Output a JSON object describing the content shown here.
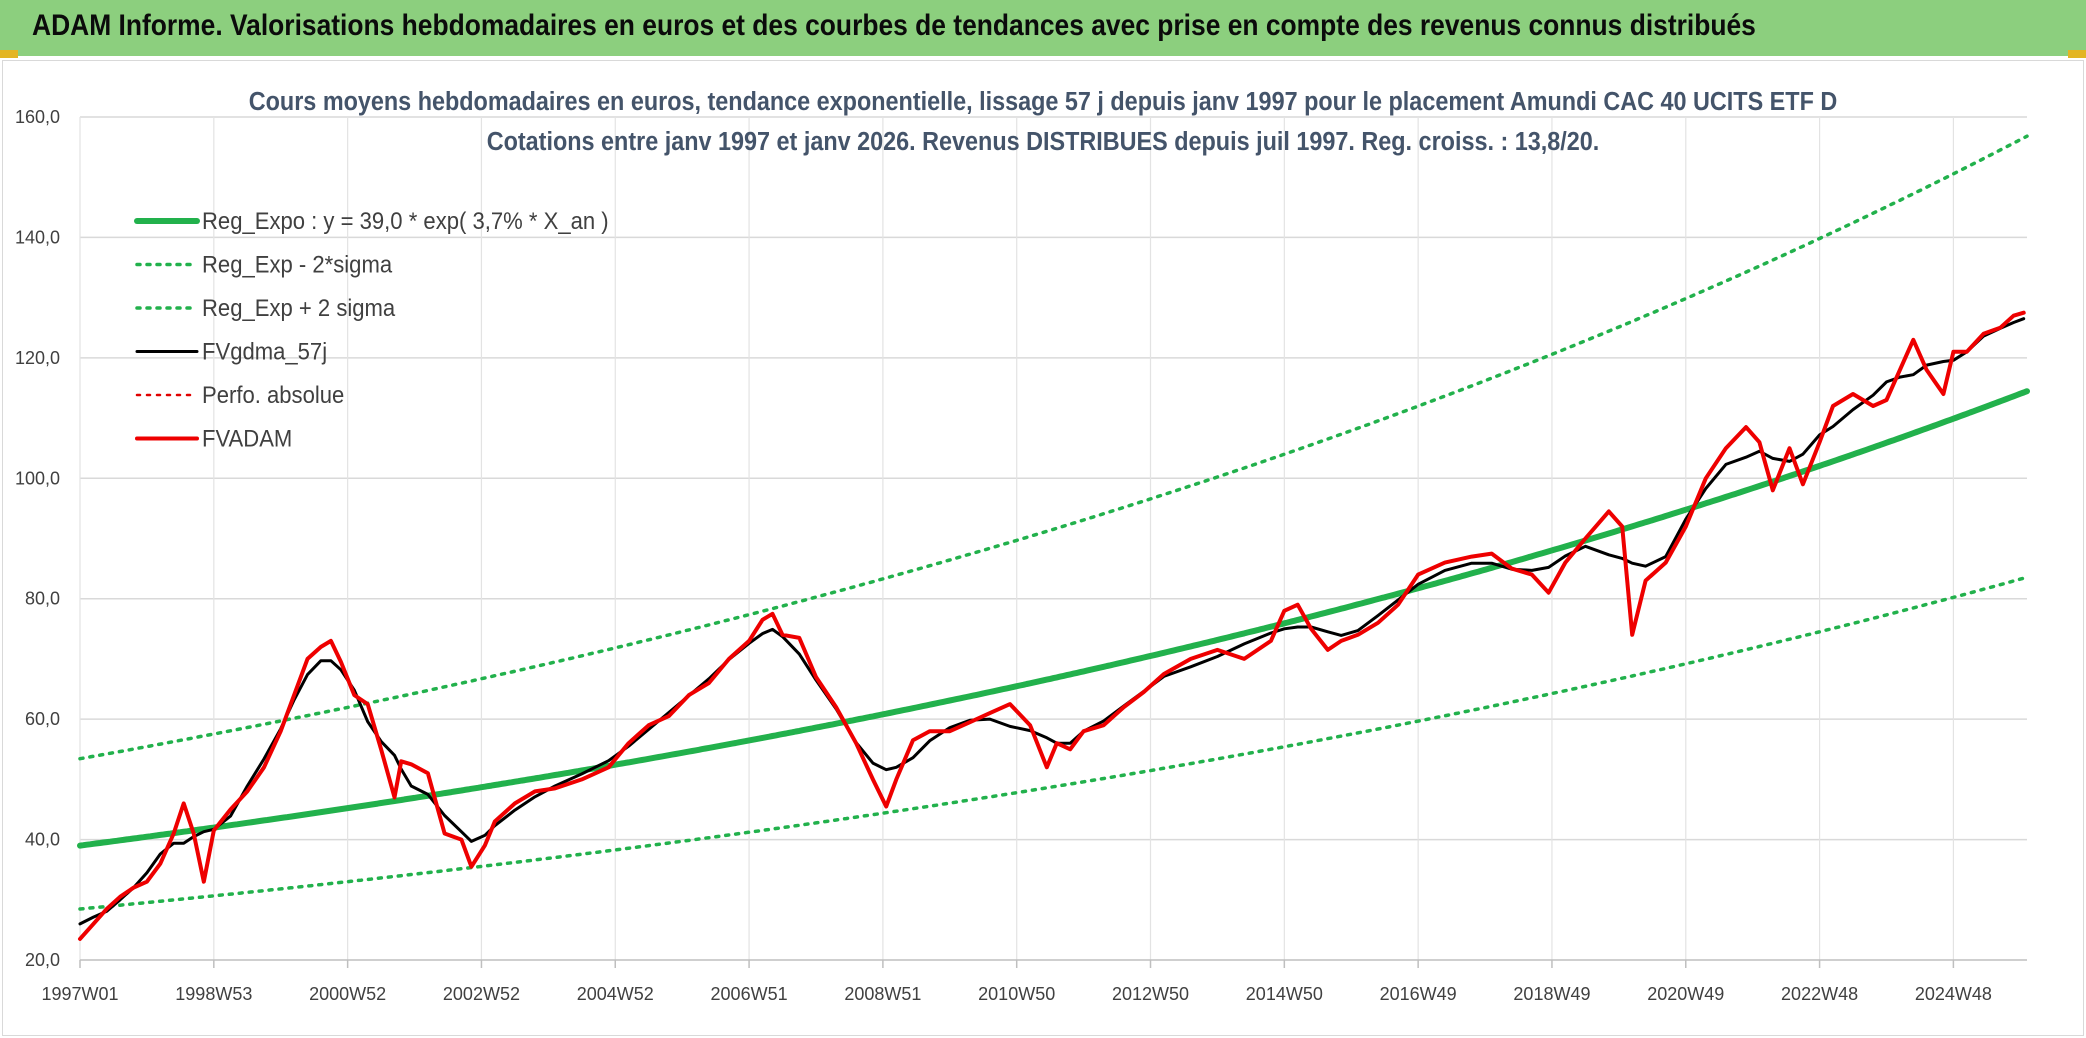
{
  "banner": {
    "title": "ADAM Informe. Valorisations hebdomadaires en euros et des courbes de tendances avec prise en compte des revenus connus distribués"
  },
  "chart_data": {
    "type": "line",
    "title_lines": [
      "Cours moyens hebdomadaires en euros, tendance exponentielle, lissage 57 j depuis janv 1997 pour le placement Amundi CAC 40 UCITS ETF D",
      "Cotations entre janv 1997 et janv 2026. Revenus DISTRIBUES depuis juil 1997. Reg. croiss. : 13,8/20."
    ],
    "xlabel": "",
    "ylabel": "",
    "ylim": [
      20,
      160
    ],
    "y_ticks": [
      "20,0",
      "40,0",
      "60,0",
      "80,0",
      "100,0",
      "120,0",
      "140,0",
      "160,0"
    ],
    "xlim": [
      1997.0,
      2026.1
    ],
    "x_ticks": [
      {
        "x": 1997.0,
        "label": "1997W01"
      },
      {
        "x": 1999.0,
        "label": "1998W53"
      },
      {
        "x": 2001.0,
        "label": "2000W52"
      },
      {
        "x": 2003.0,
        "label": "2002W52"
      },
      {
        "x": 2005.0,
        "label": "2004W52"
      },
      {
        "x": 2007.0,
        "label": "2006W51"
      },
      {
        "x": 2009.0,
        "label": "2008W51"
      },
      {
        "x": 2011.0,
        "label": "2010W50"
      },
      {
        "x": 2013.0,
        "label": "2012W50"
      },
      {
        "x": 2015.0,
        "label": "2014W50"
      },
      {
        "x": 2017.0,
        "label": "2016W49"
      },
      {
        "x": 2019.0,
        "label": "2018W49"
      },
      {
        "x": 2021.0,
        "label": "2020W49"
      },
      {
        "x": 2023.0,
        "label": "2022W48"
      },
      {
        "x": 2025.0,
        "label": "2024W48"
      }
    ],
    "grid": true,
    "legend_position": "top-left",
    "regression": {
      "a": 39.0,
      "rate_pct": 3.7,
      "sigma_factor_low": 0.73,
      "sigma_factor_high": 1.37
    },
    "series": [
      {
        "name": "Reg_Expo : y = 39,0 * exp( 3,7% *  X_an )",
        "kind": "trend",
        "color": "#22b14c",
        "style": "solid",
        "width": 6
      },
      {
        "name": "Reg_Exp - 2*sigma",
        "kind": "trend_low",
        "color": "#22b14c",
        "style": "dotted",
        "width": 3.5
      },
      {
        "name": "Reg_Exp + 2 sigma",
        "kind": "trend_high",
        "color": "#22b14c",
        "style": "dotted",
        "width": 3.5
      },
      {
        "name": "FVgdma_57j",
        "kind": "smoothed",
        "color": "#000000",
        "style": "solid",
        "width": 3
      },
      {
        "name": "Perfo. absolue",
        "kind": "perf",
        "color": "#e00000",
        "style": "dotted",
        "width": 2.5
      },
      {
        "name": "FVADAM",
        "kind": "price",
        "color": "#ee0000",
        "style": "solid",
        "width": 4,
        "x": [
          1997.0,
          1997.2,
          1997.4,
          1997.6,
          1997.8,
          1998.0,
          1998.2,
          1998.4,
          1998.55,
          1998.7,
          1998.85,
          1999.0,
          1999.25,
          1999.5,
          1999.75,
          2000.0,
          2000.2,
          2000.4,
          2000.6,
          2000.75,
          2000.9,
          2001.1,
          2001.3,
          2001.5,
          2001.7,
          2001.8,
          2001.95,
          2002.2,
          2002.45,
          2002.7,
          2002.85,
          2003.05,
          2003.2,
          2003.5,
          2003.8,
          2004.1,
          2004.5,
          2004.9,
          2005.2,
          2005.5,
          2005.8,
          2006.1,
          2006.4,
          2006.7,
          2007.0,
          2007.2,
          2007.35,
          2007.5,
          2007.75,
          2008.0,
          2008.3,
          2008.6,
          2008.85,
          2009.05,
          2009.2,
          2009.45,
          2009.7,
          2010.0,
          2010.3,
          2010.6,
          2010.9,
          2011.2,
          2011.45,
          2011.6,
          2011.8,
          2012.0,
          2012.3,
          2012.6,
          2012.9,
          2013.2,
          2013.6,
          2014.0,
          2014.4,
          2014.8,
          2015.0,
          2015.2,
          2015.4,
          2015.65,
          2015.85,
          2016.1,
          2016.4,
          2016.7,
          2017.0,
          2017.4,
          2017.8,
          2018.1,
          2018.4,
          2018.7,
          2018.95,
          2019.2,
          2019.5,
          2019.85,
          2020.05,
          2020.2,
          2020.4,
          2020.7,
          2021.0,
          2021.3,
          2021.6,
          2021.9,
          2022.1,
          2022.3,
          2022.55,
          2022.75,
          2023.0,
          2023.2,
          2023.5,
          2023.8,
          2024.0,
          2024.2,
          2024.4,
          2024.6,
          2024.85,
          2025.0,
          2025.2,
          2025.45,
          2025.7,
          2025.9,
          2026.05
        ],
        "y": [
          23.5,
          26.0,
          28.5,
          30.5,
          32.0,
          33.0,
          36.0,
          41.0,
          46.0,
          41.0,
          33.0,
          41.5,
          45.0,
          48.0,
          52.0,
          58.0,
          64.0,
          70.0,
          72.0,
          73.0,
          69.5,
          64.0,
          62.5,
          55.0,
          47.0,
          53.0,
          52.5,
          51.0,
          41.0,
          40.0,
          35.5,
          39.0,
          43.0,
          46.0,
          48.0,
          48.5,
          50.0,
          52.0,
          56.0,
          59.0,
          60.5,
          64.0,
          66.0,
          70.0,
          73.0,
          76.5,
          77.5,
          74.0,
          73.5,
          67.0,
          62.0,
          56.0,
          50.0,
          45.5,
          50.0,
          56.5,
          58.0,
          58.0,
          59.5,
          61.0,
          62.5,
          59.0,
          52.0,
          56.0,
          55.0,
          58.0,
          59.0,
          62.0,
          64.5,
          67.5,
          70.0,
          71.5,
          70.0,
          73.0,
          78.0,
          79.0,
          75.0,
          71.5,
          73.0,
          74.0,
          76.0,
          79.0,
          84.0,
          86.0,
          87.0,
          87.5,
          85.0,
          84.0,
          81.0,
          86.0,
          90.0,
          94.5,
          92.0,
          74.0,
          83.0,
          86.0,
          92.0,
          100.0,
          105.0,
          108.5,
          106.0,
          98.0,
          105.0,
          99.0,
          106.0,
          112.0,
          114.0,
          112.0,
          113.0,
          118.0,
          123.0,
          118.0,
          114.0,
          121.0,
          121.0,
          124.0,
          125.0,
          127.0,
          127.5
        ]
      }
    ]
  }
}
